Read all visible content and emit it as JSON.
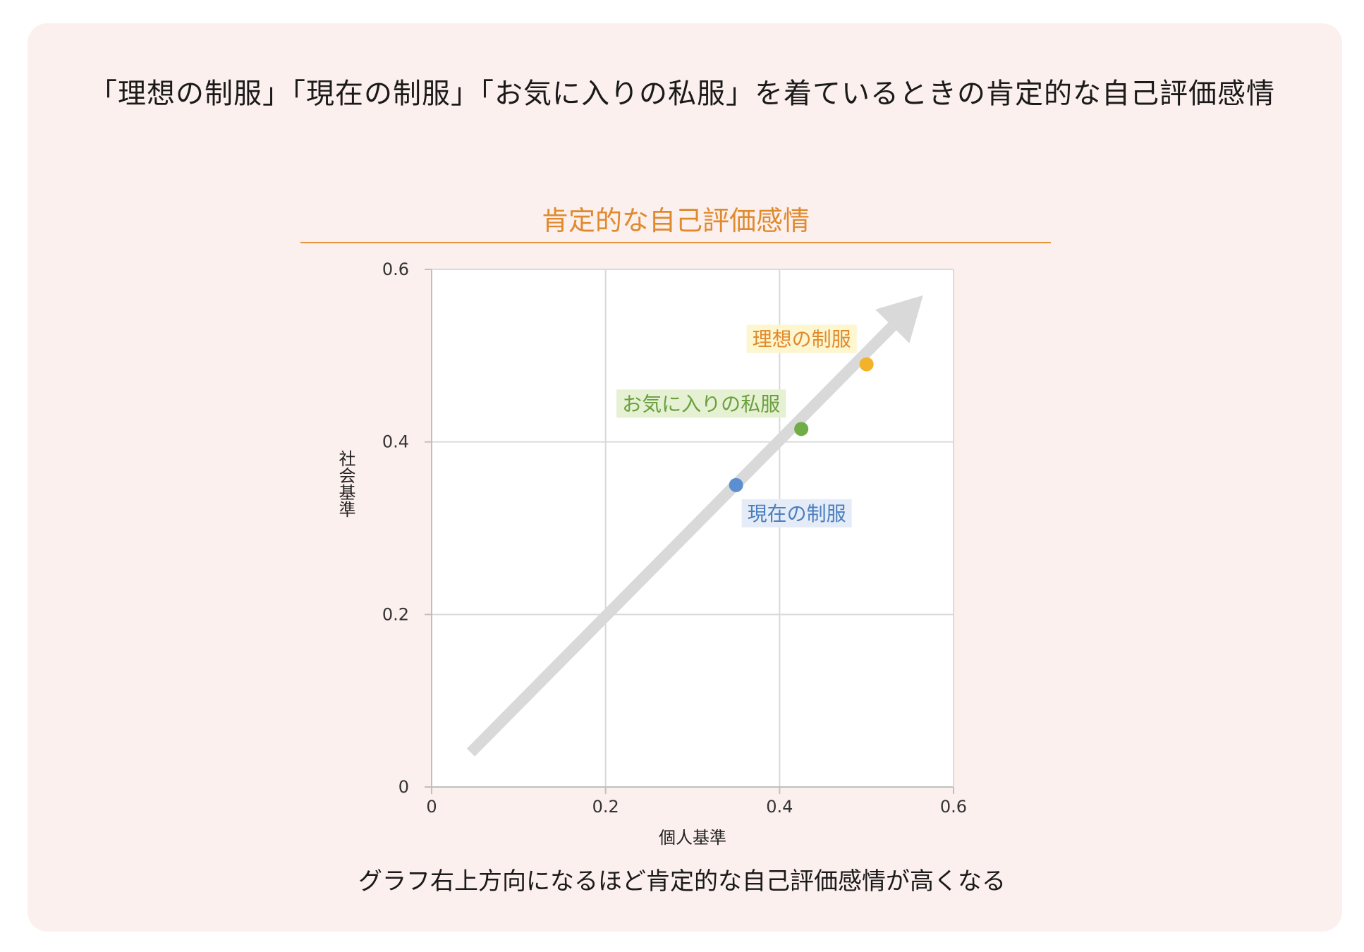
{
  "page": {
    "title": "「理想の制服」「現在の制服」「お気に入りの私服」を着ているときの肯定的な自己評価感情",
    "footer": "グラフ右上方向になるほど肯定的な自己評価感情が高くなる"
  },
  "colors": {
    "background": "#fcf0ee",
    "title_accent": "#e08a2e",
    "trend_arrow": "#d9d9d9"
  },
  "chart_data": {
    "type": "scatter",
    "title": "肯定的な自己評価感情",
    "xlabel": "個人基準",
    "ylabel": "社会基準",
    "xlim": [
      0,
      0.6
    ],
    "ylim": [
      0,
      0.6
    ],
    "xticks": [
      "0",
      "0.2",
      "0.4",
      "0.6"
    ],
    "yticks": [
      "0",
      "0.2",
      "0.4",
      "0.6"
    ],
    "grid": true,
    "points": [
      {
        "name": "理想の制服",
        "x": 0.5,
        "y": 0.49,
        "color": "#f2b32a",
        "label_color": "#e08a2e",
        "label_bg": "#fdf6cf"
      },
      {
        "name": "お気に入りの私服",
        "x": 0.425,
        "y": 0.415,
        "color": "#70ad47",
        "label_color": "#6aa040",
        "label_bg": "#e6f0d2"
      },
      {
        "name": "現在の制服",
        "x": 0.35,
        "y": 0.35,
        "color": "#5b8fd0",
        "label_color": "#4a7fc0",
        "label_bg": "#e6ecf7"
      }
    ],
    "trend_arrow": {
      "from": [
        0.045,
        0.04
      ],
      "to": [
        0.565,
        0.57
      ]
    }
  }
}
